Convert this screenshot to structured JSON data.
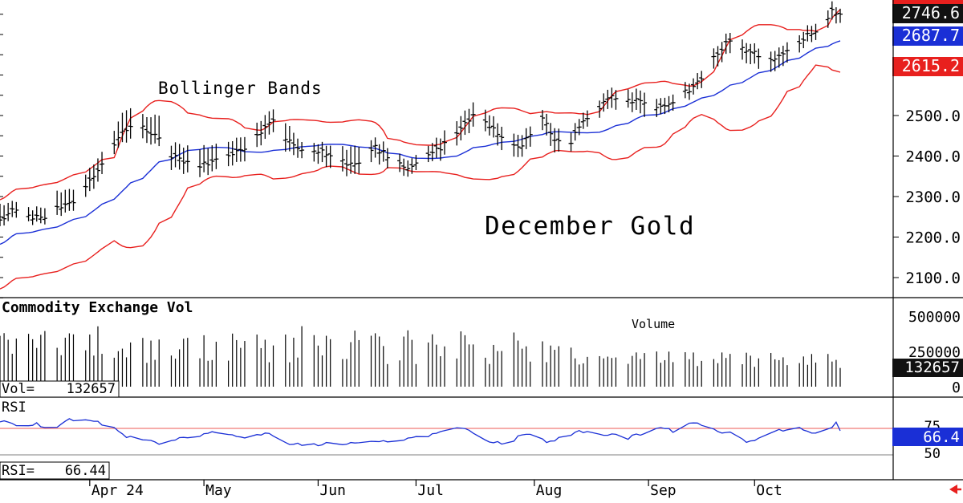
{
  "chart_data": {
    "type": "bar",
    "subtype": "ohlc-with-indicators",
    "title": "December Gold",
    "colors": {
      "price_bars": "#000000",
      "bollinger_bands": "#e8201e",
      "moving_average": "#1a2fd6",
      "rsi_line": "#1a2fd6",
      "last_price_tag": "#111111",
      "ma_tag": "#1a2fd6",
      "lower_band_tag": "#e8201e",
      "arrow": "#e8201e"
    },
    "x_axis": {
      "months": [
        {
          "label": "Apr 24",
          "day": 22
        },
        {
          "label": "May",
          "day": 50
        },
        {
          "label": "Jun",
          "day": 78
        },
        {
          "label": "Jul",
          "day": 102
        },
        {
          "label": "Aug",
          "day": 131
        },
        {
          "label": "Sep",
          "day": 159
        },
        {
          "label": "Oct",
          "day": 185
        }
      ],
      "day_range": [
        0,
        226
      ]
    },
    "price_panel": {
      "ylim": [
        2030,
        2780
      ],
      "yticks": [
        2100.0,
        2200.0,
        2300.0,
        2400.0,
        2500.0
      ],
      "annotation_bands": "Bollinger Bands",
      "last_price": "2746.6",
      "ma_value": "2687.7",
      "lower_band_value": "2615.2",
      "anchors": [
        [
          0,
          2240,
          2280,
          2225
        ],
        [
          3,
          2265,
          2285,
          2245
        ],
        [
          7,
          2250,
          2270,
          2235
        ],
        [
          11,
          2245,
          2270,
          2230
        ],
        [
          14,
          2270,
          2310,
          2250
        ],
        [
          19,
          2290,
          2320,
          2270
        ],
        [
          23,
          2350,
          2380,
          2320
        ],
        [
          27,
          2420,
          2450,
          2400
        ],
        [
          31,
          2470,
          2520,
          2440
        ],
        [
          35,
          2470,
          2500,
          2440
        ],
        [
          39,
          2440,
          2495,
          2420
        ],
        [
          42,
          2400,
          2430,
          2370
        ],
        [
          48,
          2375,
          2420,
          2350
        ],
        [
          55,
          2395,
          2430,
          2370
        ],
        [
          60,
          2420,
          2450,
          2390
        ],
        [
          64,
          2460,
          2490,
          2430
        ],
        [
          68,
          2500,
          2525,
          2470
        ],
        [
          70,
          2440,
          2480,
          2410
        ],
        [
          74,
          2420,
          2440,
          2400
        ],
        [
          79,
          2410,
          2430,
          2380
        ],
        [
          83,
          2390,
          2420,
          2360
        ],
        [
          87,
          2375,
          2420,
          2350
        ],
        [
          92,
          2420,
          2440,
          2390
        ],
        [
          96,
          2395,
          2420,
          2370
        ],
        [
          100,
          2370,
          2390,
          2350
        ],
        [
          104,
          2390,
          2410,
          2375
        ],
        [
          109,
          2430,
          2460,
          2400
        ],
        [
          113,
          2470,
          2500,
          2440
        ],
        [
          117,
          2510,
          2540,
          2480
        ],
        [
          120,
          2470,
          2500,
          2450
        ],
        [
          124,
          2445,
          2470,
          2410
        ],
        [
          127,
          2420,
          2450,
          2395
        ],
        [
          130,
          2450,
          2470,
          2420
        ],
        [
          133,
          2500,
          2520,
          2470
        ],
        [
          136,
          2440,
          2470,
          2410
        ],
        [
          139,
          2420,
          2450,
          2400
        ],
        [
          142,
          2470,
          2490,
          2450
        ],
        [
          146,
          2510,
          2530,
          2490
        ],
        [
          150,
          2550,
          2570,
          2520
        ],
        [
          154,
          2540,
          2565,
          2520
        ],
        [
          158,
          2535,
          2560,
          2500
        ],
        [
          162,
          2520,
          2540,
          2500
        ],
        [
          167,
          2550,
          2570,
          2530
        ],
        [
          171,
          2580,
          2600,
          2560
        ],
        [
          175,
          2640,
          2660,
          2610
        ],
        [
          179,
          2690,
          2710,
          2660
        ],
        [
          182,
          2670,
          2690,
          2640
        ],
        [
          186,
          2650,
          2670,
          2620
        ],
        [
          189,
          2640,
          2660,
          2610
        ],
        [
          193,
          2660,
          2680,
          2630
        ],
        [
          197,
          2690,
          2710,
          2670
        ],
        [
          201,
          2720,
          2740,
          2700
        ],
        [
          204,
          2755,
          2775,
          2730
        ],
        [
          206,
          2746.6,
          2760,
          2725
        ]
      ]
    },
    "volume_panel": {
      "title": "Commodity Exchange Vol",
      "annotation": "Volume",
      "ylim": [
        0,
        500000
      ],
      "yticks": [
        "500000",
        "250000",
        "0"
      ],
      "last_value": "132657",
      "readout_label": "Vol=",
      "readout_value": "132657"
    },
    "rsi_panel": {
      "title": "RSI",
      "ylim": [
        25,
        90
      ],
      "yticks": [
        "75",
        "50"
      ],
      "upper_line": 70,
      "lower_line": 30,
      "last_value": "66.4",
      "readout_label": "RSI=",
      "readout_value": "66.44",
      "anchors": [
        [
          0,
          82
        ],
        [
          4,
          73
        ],
        [
          9,
          78
        ],
        [
          12,
          68
        ],
        [
          17,
          83
        ],
        [
          21,
          85
        ],
        [
          27,
          73
        ],
        [
          31,
          58
        ],
        [
          35,
          52
        ],
        [
          40,
          47
        ],
        [
          44,
          54
        ],
        [
          49,
          60
        ],
        [
          54,
          67
        ],
        [
          57,
          58
        ],
        [
          61,
          57
        ],
        [
          65,
          64
        ],
        [
          69,
          50
        ],
        [
          72,
          46
        ],
        [
          76,
          43
        ],
        [
          80,
          49
        ],
        [
          84,
          46
        ],
        [
          90,
          51
        ],
        [
          95,
          49
        ],
        [
          99,
          53
        ],
        [
          104,
          57
        ],
        [
          108,
          67
        ],
        [
          112,
          72
        ],
        [
          116,
          64
        ],
        [
          120,
          51
        ],
        [
          124,
          45
        ],
        [
          127,
          57
        ],
        [
          131,
          62
        ],
        [
          134,
          49
        ],
        [
          139,
          60
        ],
        [
          143,
          66
        ],
        [
          147,
          63
        ],
        [
          151,
          59
        ],
        [
          154,
          55
        ],
        [
          157,
          62
        ],
        [
          161,
          72
        ],
        [
          165,
          66
        ],
        [
          169,
          79
        ],
        [
          172,
          75
        ],
        [
          176,
          66
        ],
        [
          180,
          62
        ],
        [
          183,
          50
        ],
        [
          187,
          58
        ],
        [
          191,
          66
        ],
        [
          195,
          72
        ],
        [
          198,
          66
        ],
        [
          202,
          63
        ],
        [
          205,
          78
        ],
        [
          206,
          66.4
        ]
      ]
    }
  }
}
